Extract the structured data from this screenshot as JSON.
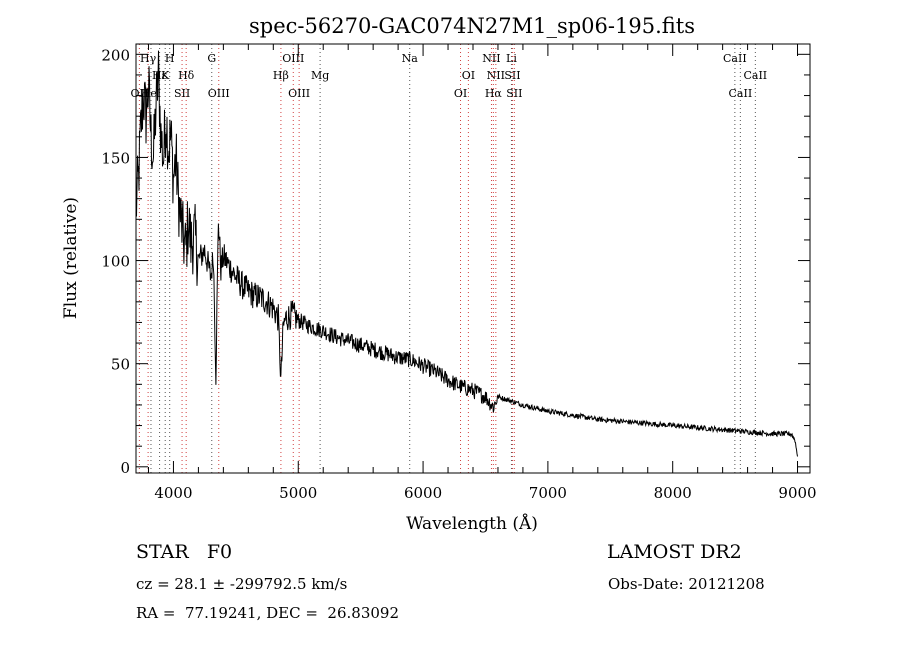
{
  "chart_data": {
    "type": "line",
    "title": "spec-56270-GAC074N27M1_sp06-195.fits",
    "xlabel": "Wavelength (Å)",
    "ylabel": "Flux (relative)",
    "xlim": [
      3700,
      9100
    ],
    "ylim": [
      -3,
      205
    ],
    "xticks": [
      4000,
      5000,
      6000,
      7000,
      8000,
      9000
    ],
    "yticks": [
      0,
      50,
      100,
      150,
      200
    ],
    "grid": false,
    "series": [
      {
        "color": "#000000",
        "x": [
          3700,
          3720,
          3740,
          3760,
          3780,
          3800,
          3820,
          3840,
          3860,
          3880,
          3900,
          3920,
          3940,
          3960,
          3980,
          4000,
          4020,
          4040,
          4060,
          4080,
          4100,
          4120,
          4140,
          4170,
          4200,
          4250,
          4300,
          4320,
          4340,
          4360,
          4380,
          4400,
          4450,
          4500,
          4550,
          4600,
          4650,
          4700,
          4750,
          4800,
          4840,
          4861,
          4880,
          4900,
          4950,
          5000,
          5100,
          5200,
          5300,
          5400,
          5500,
          5600,
          5700,
          5800,
          5900,
          6000,
          6100,
          6200,
          6300,
          6400,
          6500,
          6563,
          6600,
          6700,
          6800,
          7000,
          7200,
          7400,
          7600,
          7800,
          8000,
          8200,
          8400,
          8600,
          8800,
          8950,
          8980,
          9000
        ],
        "y": [
          125,
          140,
          165,
          180,
          170,
          185,
          160,
          150,
          175,
          190,
          160,
          150,
          170,
          155,
          160,
          140,
          150,
          130,
          120,
          110,
          105,
          120,
          108,
          112,
          100,
          105,
          92,
          103,
          45,
          120,
          96,
          102,
          97,
          92,
          88,
          85,
          83,
          82,
          80,
          77,
          72,
          42,
          68,
          72,
          74,
          71,
          68,
          66,
          63,
          61,
          59,
          57,
          55,
          53,
          52,
          49,
          46,
          42,
          39,
          37,
          34,
          29,
          34,
          32,
          30,
          27,
          25,
          23,
          22,
          21,
          20,
          19,
          18,
          17,
          16,
          16,
          13,
          5
        ]
      }
    ]
  },
  "lines": {
    "top": [
      {
        "label": "Hγ",
        "wl": 3797,
        "row": 0
      },
      {
        "label": "H",
        "wl": 3970,
        "row": 0
      },
      {
        "label": "G",
        "wl": 4307,
        "row": 0
      },
      {
        "label": "OIII",
        "wl": 4960,
        "row": 0
      },
      {
        "label": "Na",
        "wl": 5893,
        "row": 0
      },
      {
        "label": "NII",
        "wl": 6548,
        "row": 0
      },
      {
        "label": "Li",
        "wl": 6708,
        "row": 0
      },
      {
        "label": "CaII",
        "wl": 8498,
        "row": 0
      },
      {
        "label": "Hε",
        "wl": 3889,
        "row": 1
      },
      {
        "label": "K",
        "wl": 3934,
        "row": 1
      },
      {
        "label": "Hδ",
        "wl": 4102,
        "row": 1
      },
      {
        "label": "Hβ",
        "wl": 4861,
        "row": 1
      },
      {
        "label": "Mg",
        "wl": 5175,
        "row": 1
      },
      {
        "label": "OI",
        "wl": 6363,
        "row": 1
      },
      {
        "label": "NII",
        "wl": 6583,
        "row": 1
      },
      {
        "label": "SII",
        "wl": 6716,
        "row": 1
      },
      {
        "label": "CaII",
        "wl": 8662,
        "row": 1
      },
      {
        "label": "OII",
        "wl": 3727,
        "row": 2
      },
      {
        "label": "HeI",
        "wl": 3820,
        "row": 2
      },
      {
        "label": "SII",
        "wl": 4069,
        "row": 2
      },
      {
        "label": "OIII",
        "wl": 4363,
        "row": 2
      },
      {
        "label": "OIII",
        "wl": 5007,
        "row": 2
      },
      {
        "label": "OI",
        "wl": 6300,
        "row": 2
      },
      {
        "label": "Hα",
        "wl": 6563,
        "row": 2
      },
      {
        "label": "SII",
        "wl": 6731,
        "row": 2
      },
      {
        "label": "CaII",
        "wl": 8542,
        "row": 2
      }
    ]
  },
  "info": {
    "object_type": "STAR",
    "subclass": "F0",
    "survey": "LAMOST DR2",
    "redshift": "cz = 28.1 ± -299792.5 km/s",
    "obs_date": "Obs-Date: 20121208",
    "coords": "RA =  77.19241, DEC =  26.83092"
  },
  "colors": {
    "axes": "#000000",
    "emission_line": "#d04040",
    "absorption_line": "#555555"
  }
}
